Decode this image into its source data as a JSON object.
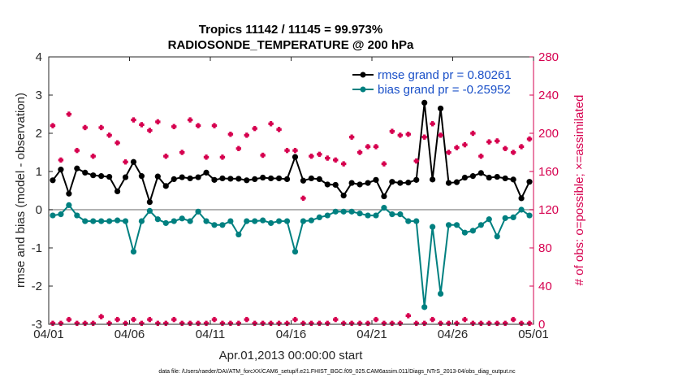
{
  "title_line1": "Tropics 11142 / 11145 = 99.973%",
  "title_line2": "RADIOSONDE_TEMPERATURE @ 200 hPa",
  "footer": "data file: /Users/raeder/DAI/ATM_forcXX/CAM6_setup/f.e21.FHIST_BGC.f09_025.CAM6assim.011/Diags_NTrS_2013-04/obs_diag_output.nc",
  "colors": {
    "rmse": "#000000",
    "bias": "#008080",
    "obs": "#d6004f",
    "zero_line": "#999999",
    "right_axis": "#d6004f",
    "legend_text": "#1a50c8"
  },
  "chart_data": {
    "type": "line",
    "xlabel": "Apr.01,2013 00:00:00 start",
    "ylabel": "rmse and bias (model - observation)",
    "y2label": "# of obs: o=possible; ×=assimilated",
    "x_day_range": [
      1,
      31
    ],
    "x_ticks": [
      {
        "day": 1,
        "label": "04/01"
      },
      {
        "day": 6,
        "label": "04/06"
      },
      {
        "day": 11,
        "label": "04/11"
      },
      {
        "day": 16,
        "label": "04/16"
      },
      {
        "day": 21,
        "label": "04/21"
      },
      {
        "day": 26,
        "label": "04/26"
      },
      {
        "day": 31,
        "label": "05/01"
      }
    ],
    "ylim": [
      -3,
      4
    ],
    "y_ticks": [
      "-3",
      "-2",
      "-1",
      "0",
      "1",
      "2",
      "3",
      "4"
    ],
    "y2lim": [
      0,
      280
    ],
    "y2_ticks": [
      "0",
      "40",
      "80",
      "120",
      "160",
      "200",
      "240",
      "280"
    ],
    "legend_position": "top-right",
    "legend": [
      "rmse grand pr = 0.80261",
      "bias grand pr = -0.25952"
    ],
    "x_days": [
      1.25,
      1.75,
      2.25,
      2.75,
      3.25,
      3.75,
      4.25,
      4.75,
      5.25,
      5.75,
      6.25,
      6.75,
      7.25,
      7.75,
      8.25,
      8.75,
      9.25,
      9.75,
      10.25,
      10.75,
      11.25,
      11.75,
      12.25,
      12.75,
      13.25,
      13.75,
      14.25,
      14.75,
      15.25,
      15.75,
      16.25,
      16.75,
      17.25,
      17.75,
      18.25,
      18.75,
      19.25,
      19.75,
      20.25,
      20.75,
      21.25,
      21.75,
      22.25,
      22.75,
      23.25,
      23.75,
      24.25,
      24.75,
      25.25,
      25.75,
      26.25,
      26.75,
      27.25,
      27.75,
      28.25,
      28.75,
      29.25,
      29.75,
      30.25,
      30.75
    ],
    "series": [
      {
        "name": "rmse grand pr = 0.80261",
        "axis": "left",
        "values": [
          0.77,
          1.05,
          0.42,
          1.08,
          0.97,
          0.9,
          0.88,
          0.86,
          0.48,
          0.85,
          1.25,
          0.88,
          0.2,
          0.87,
          0.62,
          0.8,
          0.85,
          0.82,
          0.85,
          0.97,
          0.78,
          0.82,
          0.81,
          0.81,
          0.77,
          0.8,
          0.84,
          0.82,
          0.82,
          0.8,
          1.38,
          0.76,
          0.82,
          0.8,
          0.66,
          0.65,
          0.37,
          0.7,
          0.66,
          0.7,
          0.78,
          0.35,
          0.73,
          0.7,
          0.71,
          0.78,
          2.8,
          0.79,
          2.65,
          0.7,
          0.72,
          0.84,
          0.88,
          0.96,
          0.84,
          0.86,
          0.82,
          0.79,
          0.3,
          0.73
        ]
      },
      {
        "name": "bias grand pr = -0.25952",
        "axis": "left",
        "values": [
          -0.15,
          -0.12,
          0.12,
          -0.15,
          -0.3,
          -0.3,
          -0.3,
          -0.3,
          -0.28,
          -0.3,
          -1.1,
          -0.3,
          -0.03,
          -0.25,
          -0.35,
          -0.3,
          -0.23,
          -0.3,
          -0.05,
          -0.3,
          -0.4,
          -0.4,
          -0.3,
          -0.65,
          -0.3,
          -0.3,
          -0.28,
          -0.35,
          -0.3,
          -0.3,
          -1.1,
          -0.3,
          -0.28,
          -0.2,
          -0.15,
          -0.05,
          -0.05,
          -0.05,
          -0.1,
          -0.15,
          -0.15,
          0.05,
          -0.12,
          -0.12,
          -0.3,
          -0.3,
          -2.55,
          -0.45,
          -2.2,
          -0.4,
          -0.4,
          -0.6,
          -0.55,
          -0.4,
          -0.25,
          -0.7,
          -0.22,
          -0.2,
          0.0,
          -0.15
        ]
      },
      {
        "name": "",
        "axis": "right",
        "marker": "cross",
        "values": [
          208,
          172,
          220,
          182,
          206,
          176,
          206,
          198,
          190,
          170,
          214,
          209,
          203,
          212,
          176,
          207,
          180,
          214,
          208,
          175,
          208,
          175,
          199,
          184,
          198,
          205,
          177,
          210,
          204,
          182,
          182,
          132,
          176,
          178,
          174,
          172,
          168,
          196,
          180,
          186,
          186,
          168,
          202,
          198,
          199,
          171,
          196,
          210,
          198,
          180,
          185,
          188,
          200,
          176,
          191,
          192,
          184,
          180,
          186,
          194
        ]
      },
      {
        "name": "",
        "axis": "right",
        "marker": "cross",
        "values": [
          1,
          1,
          5,
          1,
          1,
          1,
          8,
          1,
          5,
          1,
          5,
          1,
          5,
          1,
          1,
          5,
          1,
          1,
          1,
          1,
          5,
          1,
          1,
          1,
          5,
          1,
          1,
          1,
          1,
          1,
          5,
          1,
          1,
          1,
          1,
          5,
          1,
          1,
          1,
          1,
          5,
          1,
          1,
          1,
          9,
          1,
          1,
          5,
          1,
          1,
          1,
          5,
          1,
          1,
          1,
          1,
          1,
          5,
          1,
          1
        ]
      }
    ]
  }
}
